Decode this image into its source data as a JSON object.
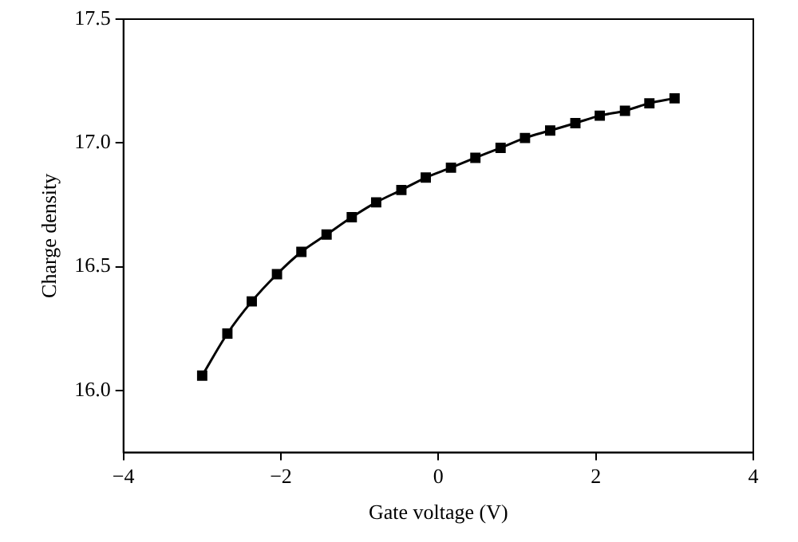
{
  "chart_data": {
    "type": "line",
    "xlabel": "Gate voltage (V)",
    "ylabel": "Charge density",
    "x": [
      -3,
      -2.68,
      -2.37,
      -2.05,
      -1.74,
      -1.42,
      -1.1,
      -0.79,
      -0.47,
      -0.16,
      0.16,
      0.47,
      0.79,
      1.1,
      1.42,
      1.74,
      2.05,
      2.37,
      2.68,
      3
    ],
    "series": [
      {
        "color": "#000000",
        "values": [
          16.06,
          16.23,
          16.36,
          16.47,
          16.56,
          16.63,
          16.7,
          16.76,
          16.81,
          16.86,
          16.9,
          16.94,
          16.98,
          17.02,
          17.05,
          17.08,
          17.11,
          17.13,
          17.16,
          17.18
        ]
      }
    ],
    "xlim": [
      -4,
      4
    ],
    "xticks": [
      {
        "value": -4,
        "label": "−4"
      },
      {
        "value": -2,
        "label": "−2"
      },
      0,
      2,
      4
    ],
    "ylim": [
      15.75,
      17.5
    ],
    "yticks": [
      {
        "value": 16,
        "label": "16.0"
      },
      {
        "value": 16.5,
        "label": "16.5"
      },
      {
        "value": 17,
        "label": "17.0"
      },
      {
        "value": 17.5,
        "label": "17.5"
      }
    ],
    "grid": false,
    "legend": false,
    "marker": "square",
    "line_style": "solid"
  }
}
